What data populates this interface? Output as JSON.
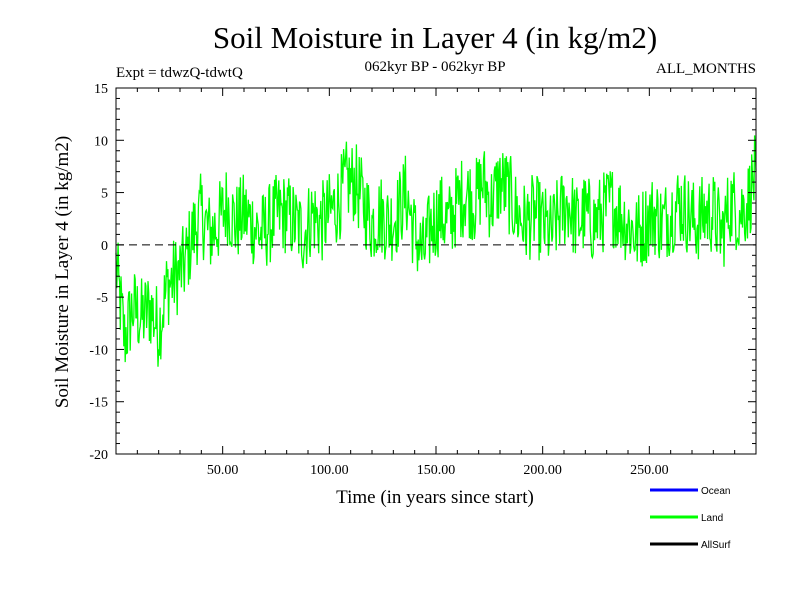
{
  "chart_data": {
    "type": "line",
    "title": "Soil Moisture in Layer 4 (in kg/m2)",
    "subtitle_left": "Expt = tdwzQ-tdwtQ",
    "subtitle_center": "062kyr BP - 062kyr BP",
    "subtitle_right": "ALL_MONTHS",
    "xlabel": "Time (in years since start)",
    "ylabel": "Soil Moisture in Layer 4 (in kg/m2)",
    "xlim": [
      0,
      300
    ],
    "ylim": [
      -20,
      15
    ],
    "x_ticks": [
      50,
      100,
      150,
      200,
      250
    ],
    "x_tick_labels": [
      "50.00",
      "100.00",
      "150.00",
      "200.00",
      "250.00"
    ],
    "y_ticks": [
      -20,
      -15,
      -10,
      -5,
      0,
      5,
      10,
      15
    ],
    "y_tick_labels": [
      "-20",
      "-15",
      "-10",
      "-5",
      "0",
      "5",
      "10",
      "15"
    ],
    "reference_line": 0,
    "legend_position": "bottom-right",
    "legend": [
      {
        "name": "Ocean",
        "color": "#0000ff"
      },
      {
        "name": "Land",
        "color": "#00ff00"
      },
      {
        "name": "AllSurf",
        "color": "#000000"
      }
    ],
    "series": [
      {
        "name": "Land",
        "color": "#00ff00",
        "x": [
          0,
          4,
          8,
          12,
          16,
          20,
          24,
          28,
          32,
          36,
          40,
          44,
          48,
          52,
          56,
          60,
          64,
          68,
          72,
          76,
          80,
          84,
          88,
          92,
          96,
          100,
          104,
          108,
          112,
          116,
          120,
          124,
          128,
          132,
          136,
          140,
          144,
          148,
          152,
          156,
          160,
          164,
          168,
          172,
          176,
          180,
          184,
          188,
          192,
          196,
          200,
          204,
          208,
          212,
          216,
          220,
          224,
          228,
          232,
          236,
          240,
          244,
          248,
          252,
          256,
          260,
          264,
          268,
          272,
          276,
          280,
          284,
          288,
          292,
          296,
          300
        ],
        "values": [
          -2,
          -9,
          -6,
          -7,
          -6,
          -8,
          -4,
          -3,
          -2,
          1,
          3,
          1,
          2,
          4,
          2,
          3,
          2,
          1,
          2,
          3,
          3,
          2,
          1,
          3,
          2,
          3,
          4,
          6,
          6,
          4,
          2,
          3,
          2,
          3,
          5,
          1,
          -1,
          2,
          3,
          2,
          4,
          5,
          4,
          6,
          4,
          6,
          5,
          3,
          2,
          3,
          2,
          1,
          3,
          4,
          2,
          3,
          2,
          3,
          4,
          3,
          2,
          1,
          2,
          3,
          2,
          3,
          4,
          3,
          2,
          3,
          3,
          1,
          4,
          3,
          4,
          7
        ]
      }
    ]
  }
}
